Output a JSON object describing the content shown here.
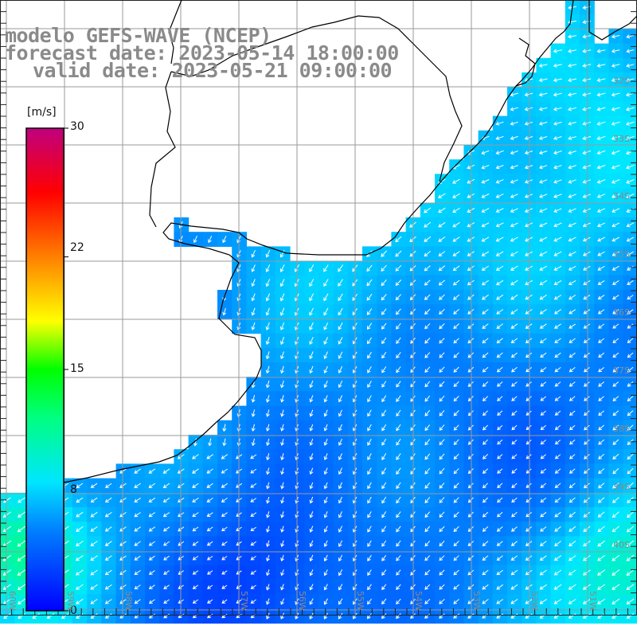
{
  "title": {
    "model": "modelo GEFS-WAVE (NCEP)",
    "forecast": "forecast date: 2023-05-14 18:00:00",
    "valid": "valid date: 2023-05-21 09:00:00"
  },
  "colorbar": {
    "unit": "[m/s]",
    "ticks": [
      "30",
      "22",
      "15",
      "8",
      "0"
    ],
    "tick_values": [
      30,
      22,
      15,
      8,
      0
    ],
    "colors": [
      "#0000ff",
      "#0080ff",
      "#00e6ff",
      "#00ff80",
      "#00ff00",
      "#ffff00",
      "#ff8000",
      "#ff0000",
      "#c00080"
    ]
  },
  "map": {
    "lon_labels": [
      "60W",
      "59W",
      "58W",
      "57W",
      "56W",
      "55W",
      "54W",
      "53W",
      "52W",
      "51W"
    ],
    "lat_labels": [
      "32S",
      "33S",
      "34S",
      "35S",
      "36S",
      "37S",
      "38S",
      "39S",
      "40S"
    ],
    "land_color": "#ffffff",
    "grid_color": "#9a9a9a",
    "arrow_color": "#ffffff"
  }
}
